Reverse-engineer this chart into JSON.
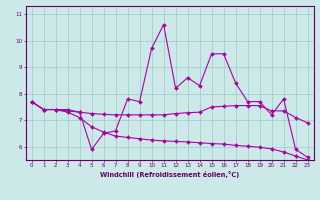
{
  "x": [
    0,
    1,
    2,
    3,
    4,
    5,
    6,
    7,
    8,
    9,
    10,
    11,
    12,
    13,
    14,
    15,
    16,
    17,
    18,
    19,
    20,
    21,
    22,
    23
  ],
  "series": [
    [
      7.7,
      7.4,
      7.4,
      7.4,
      7.3,
      5.9,
      6.5,
      6.6,
      7.8,
      7.7,
      9.7,
      10.6,
      8.2,
      8.6,
      8.3,
      9.5,
      9.5,
      8.4,
      7.7,
      7.7,
      7.2,
      7.8,
      5.9,
      5.6
    ],
    [
      7.7,
      7.4,
      7.4,
      7.35,
      7.3,
      7.25,
      7.22,
      7.2,
      7.2,
      7.2,
      7.2,
      7.2,
      7.25,
      7.28,
      7.3,
      7.5,
      7.52,
      7.55,
      7.55,
      7.55,
      7.35,
      7.35,
      7.1,
      6.9
    ],
    [
      7.7,
      7.4,
      7.4,
      7.3,
      7.1,
      6.75,
      6.55,
      6.4,
      6.35,
      6.3,
      6.25,
      6.22,
      6.2,
      6.18,
      6.15,
      6.12,
      6.1,
      6.05,
      6.02,
      5.98,
      5.92,
      5.8,
      5.65,
      5.5
    ]
  ],
  "line_color": "#aa00aa",
  "background_color": "#cce8e8",
  "grid_color": "#99cccc",
  "xlabel": "Windchill (Refroidissement éolien,°C)",
  "ylim": [
    5.5,
    11.3
  ],
  "yticks": [
    6,
    7,
    8,
    9,
    10,
    11
  ],
  "xticks": [
    0,
    1,
    2,
    3,
    4,
    5,
    6,
    7,
    8,
    9,
    10,
    11,
    12,
    13,
    14,
    15,
    16,
    17,
    18,
    19,
    20,
    21,
    22,
    23
  ]
}
